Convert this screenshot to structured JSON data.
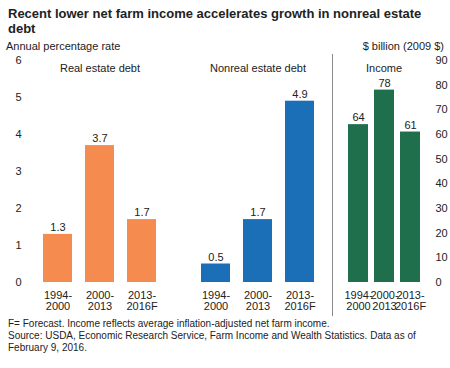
{
  "chart_data": {
    "type": "bar",
    "title": "Recent lower net farm income accelerates growth in nonreal estate debt",
    "y_label": "Annual percentage rate",
    "y2_label": "$ billion (2009 $)",
    "categories": [
      "1994-2000",
      "2000-2013",
      "2013-2016F"
    ],
    "series": [
      {
        "name": "Real estate debt",
        "color": "#f58b4e",
        "values": [
          1.3,
          3.7,
          1.7
        ]
      },
      {
        "name": "Nonreal estate debt",
        "color": "#1b6fb6",
        "values": [
          0.5,
          1.7,
          4.9
        ]
      },
      {
        "name": "Income",
        "color": "#1f6f4c",
        "axis": "y2",
        "values": [
          64,
          78,
          61
        ]
      }
    ],
    "ylim": [
      0,
      6
    ],
    "yticks": [
      0,
      1,
      2,
      3,
      4,
      5,
      6
    ],
    "y2lim": [
      0,
      90
    ],
    "y2ticks": [
      0,
      10,
      20,
      30,
      40,
      50,
      60,
      70,
      80,
      90
    ],
    "data_labels": true,
    "notes": [
      "F= Forecast. Income reflects average inflation-adjusted net farm income.",
      "Source: USDA, Economic Research Service, Farm Income and Wealth Statistics. Data as of February 9, 2016."
    ]
  }
}
